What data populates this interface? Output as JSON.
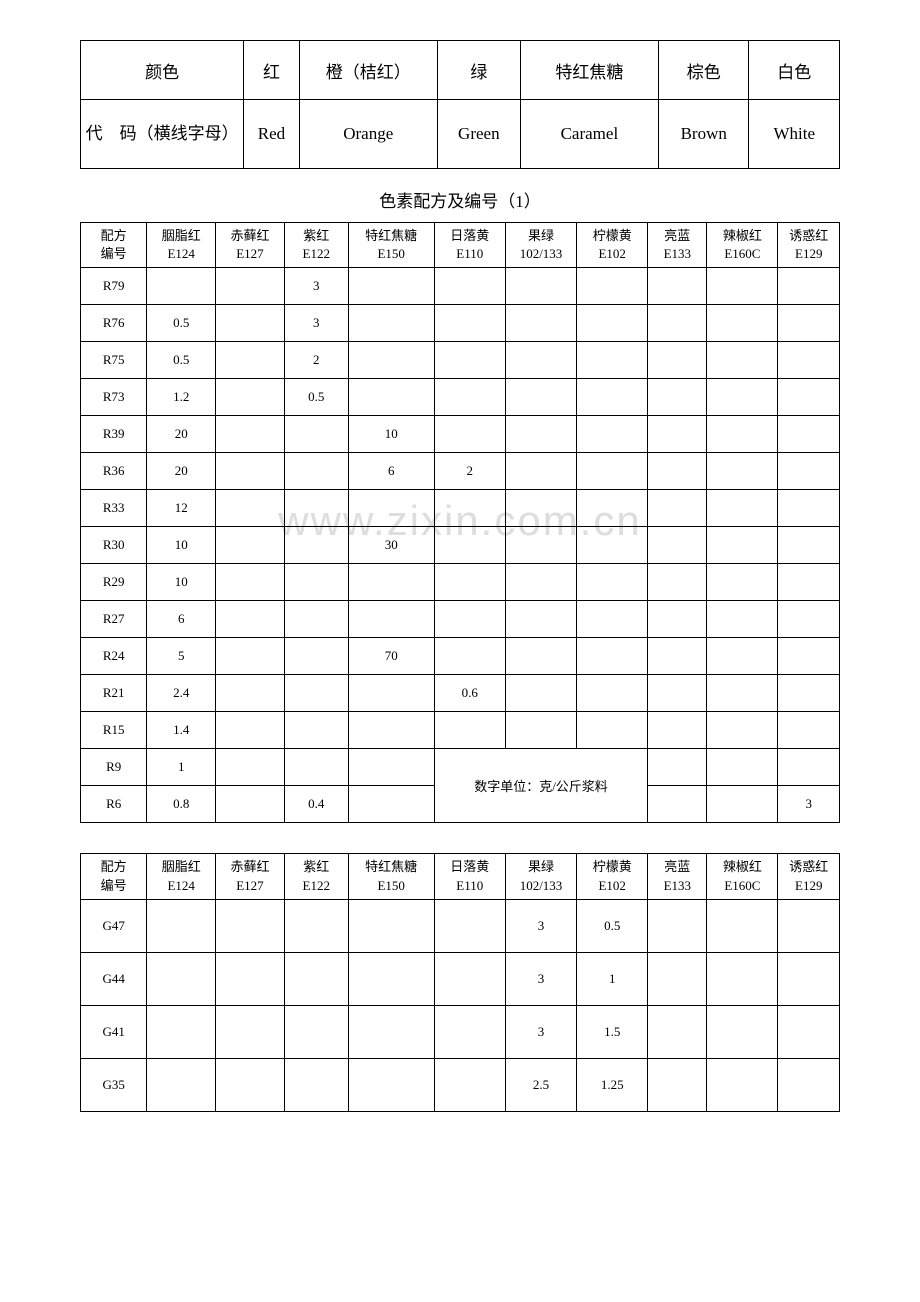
{
  "colorTable": {
    "headers": [
      "颜色",
      "红",
      "橙（桔红）",
      "绿",
      "特红焦糖",
      "棕色",
      "白色"
    ],
    "codeLabel": "代　码（横线字母）",
    "codes": [
      "Red",
      "Orange",
      "Green",
      "Caramel",
      "Brown",
      "White"
    ]
  },
  "mainTitle": "色素配方及编号（1）",
  "columns": [
    {
      "top": "配方",
      "bot": "编号"
    },
    {
      "top": "胭脂红",
      "bot": "E124"
    },
    {
      "top": "赤藓红",
      "bot": "E127"
    },
    {
      "top": "紫红",
      "bot": "E122"
    },
    {
      "top": "特红焦糖",
      "bot": "E150"
    },
    {
      "top": "日落黄",
      "bot": "E110"
    },
    {
      "top": "果绿",
      "bot": "102/133"
    },
    {
      "top": "柠檬黄",
      "bot": "E102"
    },
    {
      "top": "亮蓝",
      "bot": "E133"
    },
    {
      "top": "辣椒红",
      "bot": "E160C"
    },
    {
      "top": "诱惑红",
      "bot": "E129"
    }
  ],
  "table1Rows": [
    {
      "id": "R79",
      "v": [
        "",
        "",
        "3",
        "",
        "",
        "",
        "",
        "",
        "",
        ""
      ]
    },
    {
      "id": "R76",
      "v": [
        "0.5",
        "",
        "3",
        "",
        "",
        "",
        "",
        "",
        "",
        ""
      ]
    },
    {
      "id": "R75",
      "v": [
        "0.5",
        "",
        "2",
        "",
        "",
        "",
        "",
        "",
        "",
        ""
      ]
    },
    {
      "id": "R73",
      "v": [
        "1.2",
        "",
        "0.5",
        "",
        "",
        "",
        "",
        "",
        "",
        ""
      ]
    },
    {
      "id": "R39",
      "v": [
        "20",
        "",
        "",
        "10",
        "",
        "",
        "",
        "",
        "",
        ""
      ]
    },
    {
      "id": "R36",
      "v": [
        "20",
        "",
        "",
        "6",
        "2",
        "",
        "",
        "",
        "",
        ""
      ]
    },
    {
      "id": "R33",
      "v": [
        "12",
        "",
        "",
        "",
        "",
        "",
        "",
        "",
        "",
        ""
      ]
    },
    {
      "id": "R30",
      "v": [
        "10",
        "",
        "",
        "30",
        "",
        "",
        "",
        "",
        "",
        ""
      ]
    },
    {
      "id": "R29",
      "v": [
        "10",
        "",
        "",
        "",
        "",
        "",
        "",
        "",
        "",
        ""
      ]
    },
    {
      "id": "R27",
      "v": [
        "6",
        "",
        "",
        "",
        "",
        "",
        "",
        "",
        "",
        ""
      ]
    },
    {
      "id": "R24",
      "v": [
        "5",
        "",
        "",
        "70",
        "",
        "",
        "",
        "",
        "",
        ""
      ]
    },
    {
      "id": "R21",
      "v": [
        "2.4",
        "",
        "",
        "",
        "0.6",
        "",
        "",
        "",
        "",
        ""
      ]
    },
    {
      "id": "R15",
      "v": [
        "1.4",
        "",
        "",
        "",
        "",
        "",
        "",
        "",
        "",
        ""
      ]
    }
  ],
  "r9": {
    "id": "R9",
    "v": [
      "1",
      "",
      "",
      ""
    ],
    "tail": [
      "",
      "",
      ""
    ]
  },
  "r6": {
    "id": "R6",
    "v": [
      "0.8",
      "",
      "0.4",
      ""
    ],
    "tail": [
      "",
      "",
      "3"
    ]
  },
  "noteText": "数字单位：克/公斤浆料",
  "table2Rows": [
    {
      "id": "G47",
      "v": [
        "",
        "",
        "",
        "",
        "",
        "3",
        "0.5",
        "",
        "",
        ""
      ]
    },
    {
      "id": "G44",
      "v": [
        "",
        "",
        "",
        "",
        "",
        "3",
        "1",
        "",
        "",
        ""
      ]
    },
    {
      "id": "G41",
      "v": [
        "",
        "",
        "",
        "",
        "",
        "3",
        "1.5",
        "",
        "",
        ""
      ]
    },
    {
      "id": "G35",
      "v": [
        "",
        "",
        "",
        "",
        "",
        "2.5",
        "1.25",
        "",
        "",
        ""
      ]
    }
  ],
  "watermark": "www.zixin.com.cn",
  "colWidths": [
    "54",
    "56",
    "56",
    "52",
    "70",
    "58",
    "58",
    "58",
    "48",
    "58",
    "50"
  ],
  "colorColWidths": [
    "130",
    "44",
    "110",
    "66",
    "110",
    "72",
    "72"
  ]
}
